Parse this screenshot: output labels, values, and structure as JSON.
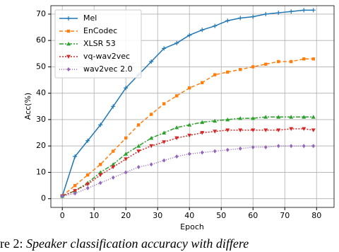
{
  "chart_data": {
    "type": "line",
    "x_label": "Epoch",
    "y_label": "Acc(%)",
    "x": [
      0,
      4,
      8,
      12,
      16,
      20,
      24,
      28,
      32,
      36,
      40,
      44,
      48,
      52,
      56,
      60,
      64,
      68,
      72,
      76,
      79
    ],
    "series": [
      {
        "name": "Mel",
        "color": "#1f77b4",
        "dash": "none",
        "marker": "plus",
        "values": [
          1,
          16,
          22,
          28,
          35,
          42,
          47,
          52,
          57,
          59,
          62,
          64,
          65.5,
          67.5,
          68.5,
          69,
          70,
          70.5,
          71,
          71.5,
          71.5
        ]
      },
      {
        "name": "EnCodec",
        "color": "#ff7f0e",
        "dash": "5,3",
        "marker": "square",
        "values": [
          1,
          5,
          9,
          13,
          18,
          23,
          28,
          32,
          36,
          39,
          42,
          44,
          47,
          48,
          49,
          50,
          51,
          52,
          52,
          53,
          53
        ]
      },
      {
        "name": "XLSR 53",
        "color": "#2ca02c",
        "dash": "6,2,2,2",
        "marker": "triangle",
        "values": [
          1,
          3,
          6,
          10,
          13,
          17,
          20,
          23,
          25,
          27,
          28,
          29,
          29.5,
          30,
          30.5,
          30.5,
          31,
          31,
          31,
          31,
          31
        ]
      },
      {
        "name": "vq-wav2vec",
        "color": "#d62728",
        "dash": "2,2",
        "marker": "triangle-down",
        "values": [
          1,
          3,
          5.5,
          9,
          12,
          15,
          18,
          20,
          21.5,
          23,
          24,
          25,
          25.5,
          26,
          26,
          26,
          26,
          26,
          26.5,
          26.5,
          26
        ]
      },
      {
        "name": "wav2vec 2.0",
        "color": "#9467bd",
        "dash": "1,2",
        "marker": "diamond",
        "values": [
          1,
          2,
          4,
          6,
          8,
          10,
          12,
          13,
          14.5,
          16,
          17,
          17.5,
          18,
          18.5,
          19,
          19.5,
          19.5,
          20,
          20,
          20,
          20
        ]
      }
    ],
    "xlim": [
      -3.6,
      85.5
    ],
    "ylim": [
      -3.3,
      73.2
    ],
    "xticks": [
      0,
      10,
      20,
      30,
      40,
      50,
      60,
      70,
      80
    ],
    "yticks": [
      0,
      10,
      20,
      30,
      40,
      50,
      60,
      70
    ],
    "grid": true,
    "legend": "upper-left"
  },
  "caption": {
    "label": "re 2:",
    "text": "Speaker classification accuracy with differe"
  }
}
